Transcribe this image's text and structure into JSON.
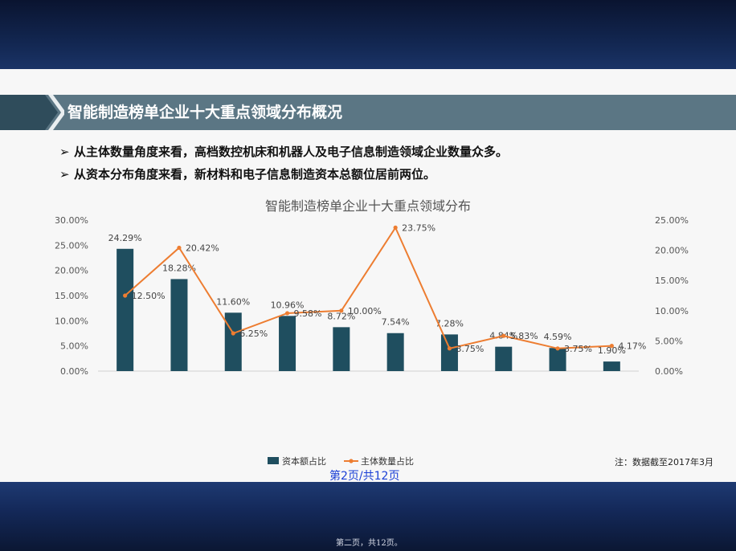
{
  "slide": {
    "title": "智能制造榜单企业十大重点领域分布概况",
    "bullets": [
      "从主体数量角度来看，高档数控机床和机器人及电子信息制造领域企业数量众多。",
      "从资本分布角度来看，新材料和电子信息制造资本总额位居前两位。"
    ],
    "footnote": "注：数据截至2017年3月",
    "page_label": "第2页/共12页",
    "page_footer": "第二页，共12页。"
  },
  "colors": {
    "bar": "#1f4e5f",
    "line": "#ed7d31",
    "title_bar": "#5b7684",
    "chevron": "#2f4c5b"
  },
  "chart_data": {
    "type": "bar",
    "title": "智能制造榜单企业十大重点领域分布",
    "categories": [
      "",
      "",
      "",
      "",
      "",
      "",
      "",
      "",
      "",
      ""
    ],
    "series": [
      {
        "name": "资本额占比",
        "type": "bar",
        "axis": "left",
        "values": [
          24.29,
          18.28,
          11.6,
          10.96,
          8.72,
          7.54,
          7.28,
          4.84,
          4.59,
          1.9
        ],
        "labels": [
          "24.29%",
          "18.28%",
          "11.60%",
          "10.96%",
          "8.72%",
          "7.54%",
          "7.28%",
          "4.84%",
          "4.59%",
          "1.90%"
        ]
      },
      {
        "name": "主体数量占比",
        "type": "line",
        "axis": "right",
        "values": [
          12.5,
          20.42,
          6.25,
          9.58,
          10.0,
          23.75,
          3.75,
          5.83,
          3.75,
          4.17
        ],
        "labels": [
          "12.50%",
          "20.42%",
          "6.25%",
          "9.58%",
          "10.00%",
          "23.75%",
          "3.75%",
          "5.83%",
          "3.75%",
          "4.17%"
        ]
      }
    ],
    "y_left": {
      "min": 0,
      "max": 30,
      "ticks": [
        "0.00%",
        "5.00%",
        "10.00%",
        "15.00%",
        "20.00%",
        "25.00%",
        "30.00%"
      ]
    },
    "y_right": {
      "min": 0,
      "max": 25,
      "ticks": [
        "0.00%",
        "5.00%",
        "10.00%",
        "15.00%",
        "20.00%",
        "25.00%"
      ]
    },
    "grid": false,
    "legend": "bottom"
  }
}
